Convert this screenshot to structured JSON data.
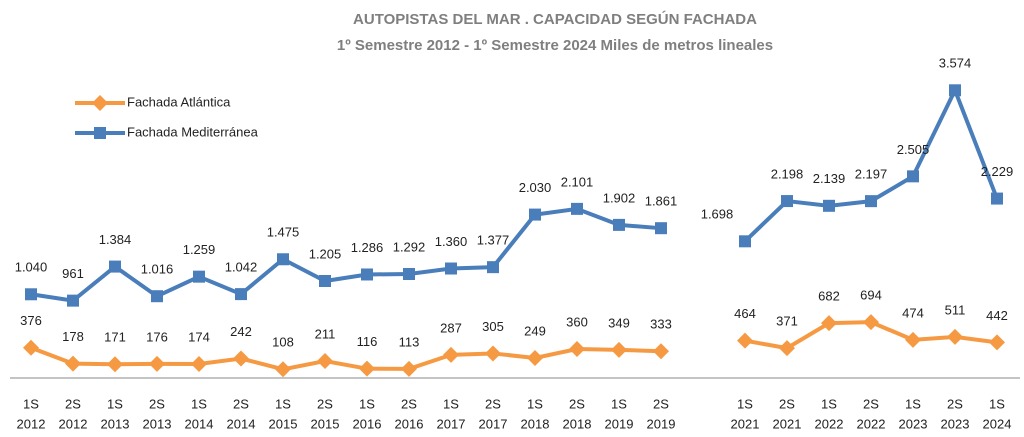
{
  "chart_data": {
    "type": "line",
    "title": "AUTOPISTAS DEL MAR . CAPACIDAD  SEGÚN FACHADA",
    "subtitle": "1º Semestre 2012 -  1º Semestre 2024 Miles de metros lineales",
    "categories": [
      [
        "1S",
        "2012"
      ],
      [
        "2S",
        "2012"
      ],
      [
        "1S",
        "2013"
      ],
      [
        "2S",
        "2013"
      ],
      [
        "1S",
        "2014"
      ],
      [
        "2S",
        "2014"
      ],
      [
        "1S",
        "2015"
      ],
      [
        "2S",
        "2015"
      ],
      [
        "1S",
        "2016"
      ],
      [
        "2S",
        "2016"
      ],
      [
        "1S",
        "2017"
      ],
      [
        "2S",
        "2017"
      ],
      [
        "1S",
        "2018"
      ],
      [
        "2S",
        "2018"
      ],
      [
        "1S",
        "2019"
      ],
      [
        "2S",
        "2019"
      ],
      null,
      [
        "1S",
        "2021"
      ],
      [
        "2S",
        "2021"
      ],
      [
        "1S",
        "2022"
      ],
      [
        "2S",
        "2022"
      ],
      [
        "1S",
        "2023"
      ],
      [
        "2S",
        "2023"
      ],
      [
        "1S",
        "2024"
      ]
    ],
    "ylim": [
      0,
      4000
    ],
    "legend": "top-left",
    "series": [
      {
        "name": "Fachada Atlántica",
        "color": "#f59a43",
        "marker": "diamond",
        "values": [
          376,
          178,
          171,
          176,
          174,
          242,
          108,
          211,
          116,
          113,
          287,
          305,
          249,
          360,
          349,
          333,
          null,
          464,
          371,
          682,
          694,
          474,
          511,
          442
        ]
      },
      {
        "name": "Fachada Mediterránea",
        "color": "#4a7ebb",
        "marker": "square",
        "values": [
          1040,
          961,
          1384,
          1016,
          1259,
          1042,
          1475,
          1205,
          1286,
          1292,
          1360,
          1377,
          2030,
          2101,
          1902,
          1861,
          null,
          1698,
          2198,
          2139,
          2197,
          2505,
          3574,
          2229
        ],
        "value_labels": [
          "1.040",
          "961",
          "1.384",
          "1.016",
          "1.259",
          "1.042",
          "1.475",
          "1.205",
          "1.286",
          "1.292",
          "1.360",
          "1.377",
          "2.030",
          "2.101",
          "1.902",
          "1.861",
          null,
          "1.698",
          "2.198",
          "2.139",
          "2.197",
          "2.505",
          "3.574",
          "2.229"
        ]
      }
    ]
  }
}
